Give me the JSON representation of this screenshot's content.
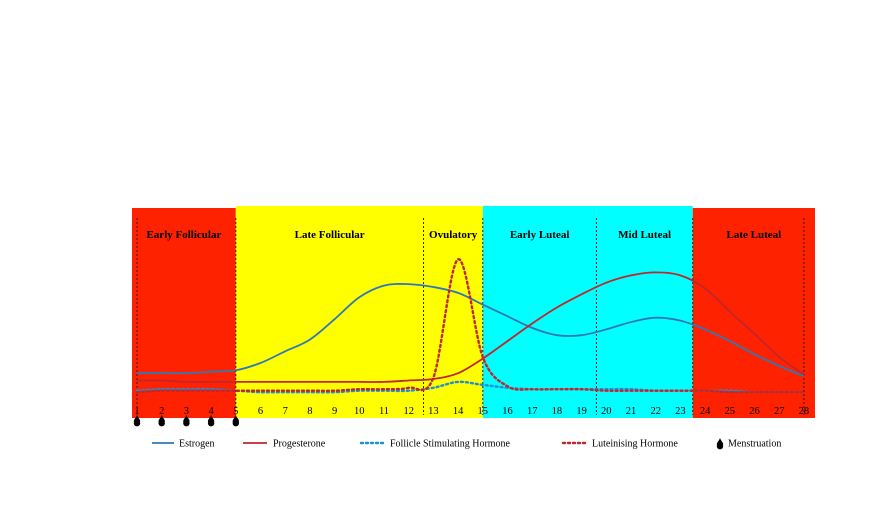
{
  "chart_data": {
    "type": "line",
    "title": "",
    "xlabel": "",
    "ylabel": "",
    "x": [
      1,
      2,
      3,
      4,
      5,
      6,
      7,
      8,
      9,
      10,
      11,
      12,
      13,
      14,
      15,
      16,
      17,
      18,
      19,
      20,
      21,
      22,
      23,
      24,
      25,
      26,
      27,
      28
    ],
    "xlim": [
      1,
      28
    ],
    "ylim": [
      0,
      100
    ],
    "grid": false,
    "legend_position": "bottom",
    "phases": [
      {
        "label": "Early Follicular",
        "start": 1,
        "end": 5,
        "color": "#ff2200"
      },
      {
        "label": "Late Follicular",
        "start": 5,
        "end": 12.6,
        "color": "#ffff00"
      },
      {
        "label": "Ovulatory",
        "start": 12.6,
        "end": 15,
        "color": "#ffff00"
      },
      {
        "label": "Early Luteal",
        "start": 15,
        "end": 19.6,
        "color": "#00ffff"
      },
      {
        "label": "Mid Luteal",
        "start": 19.6,
        "end": 23.5,
        "color": "#00ffff"
      },
      {
        "label": "Late Luteal",
        "start": 23.5,
        "end": 28.5,
        "color": "#ff2200"
      }
    ],
    "phase_dividers": [
      5,
      12.6,
      15,
      19.6,
      23.5,
      28
    ],
    "series": [
      {
        "name": "Estrogen",
        "color": "#2e78b8",
        "style": "solid",
        "values": [
          17,
          17,
          17,
          18,
          19,
          24,
          32,
          40,
          54,
          69,
          77,
          78,
          76,
          72,
          64,
          56,
          48,
          43,
          43,
          47,
          52,
          55,
          53,
          47,
          39,
          30,
          22,
          15
        ]
      },
      {
        "name": "Progesterone",
        "color": "#c0262d",
        "style": "solid",
        "values": [
          12,
          12,
          11,
          11,
          11,
          11,
          11,
          11,
          11,
          11,
          11,
          12,
          13,
          17,
          27,
          39,
          51,
          62,
          71,
          79,
          84,
          86,
          84,
          75,
          59,
          44,
          28,
          16
        ]
      },
      {
        "name": "Follicle Stimulating Hormone",
        "color": "#1f8fd6",
        "style": "dotted",
        "values": [
          5,
          6,
          6,
          6,
          5,
          4,
          4,
          4,
          4,
          5,
          5,
          5,
          7,
          11,
          9,
          7,
          6,
          6,
          6,
          6,
          6,
          5,
          5,
          5,
          5,
          4,
          4,
          4
        ]
      },
      {
        "name": "Luteinising Hormone",
        "color": "#c0262d",
        "style": "dotted",
        "values": [
          4,
          5,
          5,
          5,
          5,
          5,
          5,
          5,
          5,
          6,
          6,
          7,
          14,
          95,
          28,
          8,
          6,
          6,
          6,
          5,
          5,
          5,
          5,
          5,
          4,
          4,
          4,
          4
        ]
      }
    ],
    "menstruation": {
      "label": "Menstruation",
      "days": [
        1,
        2,
        3,
        4,
        5
      ]
    }
  }
}
